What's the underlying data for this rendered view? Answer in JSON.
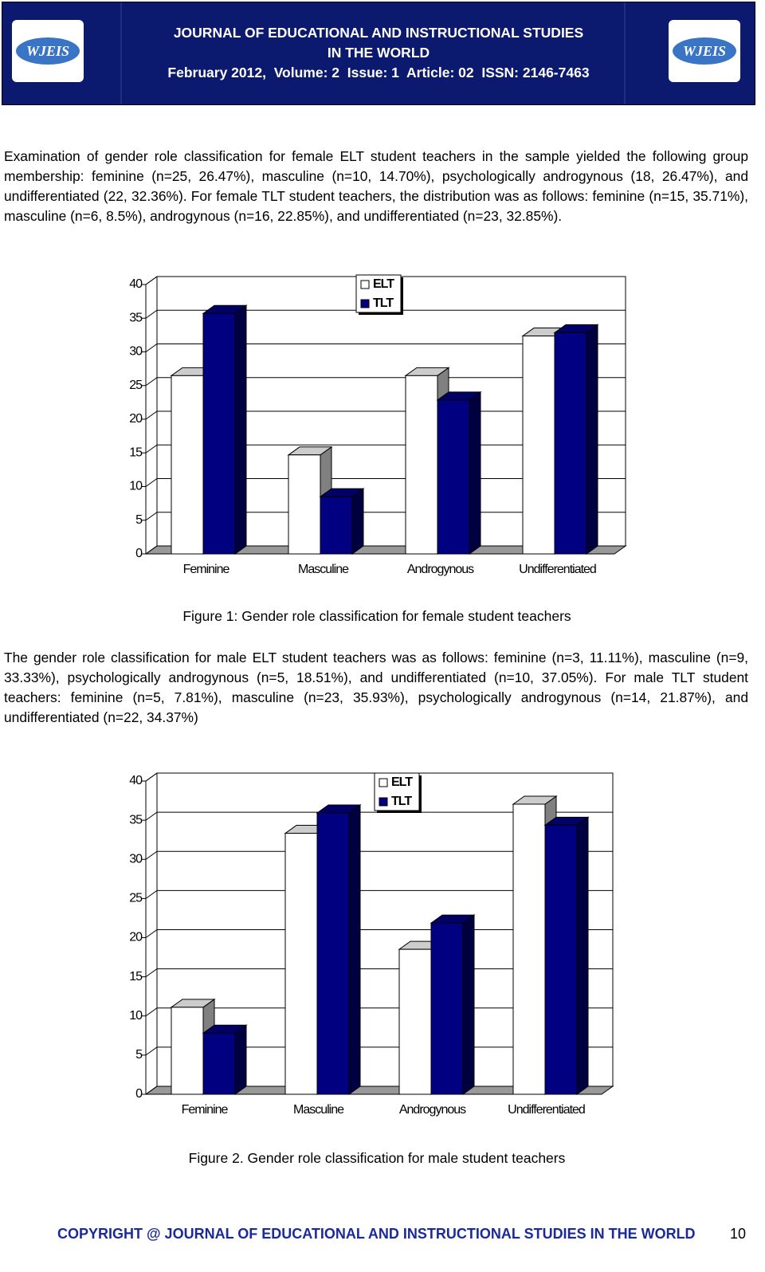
{
  "header": {
    "logo_left": "WJEIS",
    "logo_right": "WJEIS",
    "title_line1": "JOURNAL OF EDUCATIONAL AND INSTRUCTIONAL STUDIES",
    "title_line2": "IN THE WORLD",
    "issue_line": "February 2012,  Volume: 2  Issue: 1  Article: 02  ISSN: 2146-7463"
  },
  "paragraphs": [
    "Examination of gender role classification for female ELT student teachers in the sample yielded the following group membership: feminine (n=25, 26.47%), masculine (n=10, 14.70%), psychologically androgynous (18, 26.47%), and undifferentiated (22, 32.36%).  For female TLT student teachers, the distribution was as follows: feminine (n=15, 35.71%), masculine (n=6, 8.5%), androgynous (n=16, 22.85%), and undifferentiated (n=23, 32.85%).",
    "The gender role classification for male ELT student teachers was as follows: feminine (n=3, 11.11%), masculine (n=9, 33.33%), psychologically androgynous (n=5, 18.51%), and undifferentiated (n=10, 37.05%). For male TLT student teachers: feminine (n=5, 7.81%), masculine (n=23, 35.93%), psychologically androgynous (n=14, 21.87%), and undifferentiated (n=22, 34.37%)"
  ],
  "chart_data": [
    {
      "type": "bar",
      "caption": "Figure 1: Gender role classification for female student teachers",
      "categories": [
        "Feminine",
        "Masculine",
        "Androgynous",
        "Undifferentiated"
      ],
      "series": [
        {
          "name": "ELT",
          "color": "#ffffff",
          "values": [
            26.47,
            14.7,
            26.47,
            32.36
          ]
        },
        {
          "name": "TLT",
          "color": "#000080",
          "values": [
            35.71,
            8.5,
            22.85,
            32.85
          ]
        }
      ],
      "ylim": [
        0,
        40
      ],
      "yticks": [
        0,
        5,
        10,
        15,
        20,
        25,
        30,
        35,
        40
      ],
      "grid": true,
      "legend": "top-center"
    },
    {
      "type": "bar",
      "caption": "Figure 2. Gender role classification for male student teachers",
      "categories": [
        "Feminine",
        "Masculine",
        "Androgynous",
        "Undifferentiated"
      ],
      "series": [
        {
          "name": "ELT",
          "color": "#ffffff",
          "values": [
            11.11,
            33.33,
            18.51,
            37.05
          ]
        },
        {
          "name": "TLT",
          "color": "#000080",
          "values": [
            7.81,
            35.93,
            21.87,
            34.37
          ]
        }
      ],
      "ylim": [
        0,
        40
      ],
      "yticks": [
        0,
        5,
        10,
        15,
        20,
        25,
        30,
        35,
        40
      ],
      "grid": true,
      "legend": "top-center"
    }
  ],
  "footer": {
    "copyright": "COPYRIGHT @ JOURNAL OF EDUCATIONAL AND INSTRUCTIONAL STUDIES IN THE WORLD",
    "page": "10"
  }
}
